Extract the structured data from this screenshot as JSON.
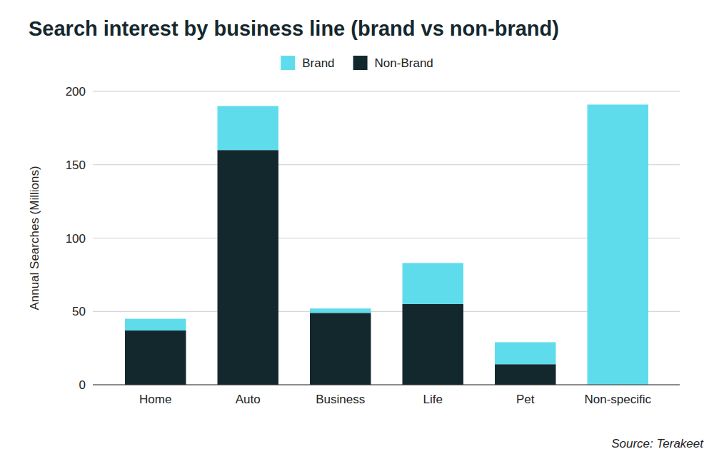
{
  "chart_data": {
    "type": "bar",
    "title": "Search interest by business line (brand vs non-brand)",
    "y_label": "Annual Searches (Millions)",
    "source": "Source: Terakeet",
    "categories": [
      "Home",
      "Auto",
      "Business",
      "Life",
      "Pet",
      "Non-specific"
    ],
    "series": [
      {
        "name": "Brand",
        "color": "#5fdcec",
        "values": [
          8,
          30,
          3,
          28,
          15,
          191
        ]
      },
      {
        "name": "Non-Brand",
        "color": "#13282d",
        "values": [
          37,
          160,
          49,
          55,
          14,
          0
        ]
      }
    ],
    "stacked": true,
    "ylim": [
      0,
      200
    ],
    "yticks": [
      0,
      50,
      100,
      150,
      200
    ],
    "grid": true,
    "legend": "top"
  }
}
